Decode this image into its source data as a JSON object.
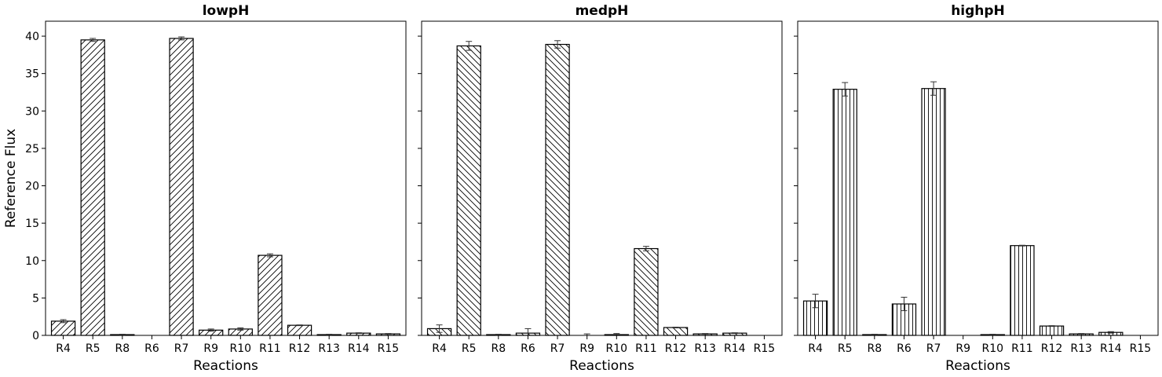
{
  "chart_data": [
    {
      "type": "bar",
      "title": "lowpH",
      "xlabel": "Reactions",
      "ylabel": "Reference Flux",
      "ylim": [
        0,
        42
      ],
      "yticks": [
        0,
        5,
        10,
        15,
        20,
        25,
        30,
        35,
        40
      ],
      "hatch": "forward-diagonal",
      "categories": [
        "R4",
        "R5",
        "R8",
        "R6",
        "R7",
        "R9",
        "R10",
        "R11",
        "R12",
        "R13",
        "R14",
        "R15"
      ],
      "values": [
        1.9,
        39.5,
        0.1,
        0.0,
        39.7,
        0.7,
        0.85,
        10.7,
        1.35,
        0.1,
        0.3,
        0.2
      ],
      "errors": [
        0.2,
        0.2,
        0.05,
        0.0,
        0.2,
        0.15,
        0.15,
        0.2,
        0.05,
        0.05,
        0.05,
        0.05
      ]
    },
    {
      "type": "bar",
      "title": "medpH",
      "xlabel": "Reactions",
      "ylabel": "",
      "ylim": [
        0,
        42
      ],
      "yticks": [
        0,
        5,
        10,
        15,
        20,
        25,
        30,
        35,
        40
      ],
      "hatch": "back-diagonal",
      "categories": [
        "R4",
        "R5",
        "R8",
        "R6",
        "R7",
        "R9",
        "R10",
        "R11",
        "R12",
        "R13",
        "R14",
        "R15"
      ],
      "values": [
        0.9,
        38.7,
        0.1,
        0.3,
        38.9,
        0.0,
        0.1,
        11.6,
        1.05,
        0.2,
        0.3,
        0.0
      ],
      "errors": [
        0.5,
        0.6,
        0.05,
        0.6,
        0.5,
        0.2,
        0.15,
        0.3,
        0.05,
        0.05,
        0.05,
        0.0
      ]
    },
    {
      "type": "bar",
      "title": "highpH",
      "xlabel": "Reactions",
      "ylabel": "",
      "ylim": [
        0,
        42
      ],
      "yticks": [
        0,
        5,
        10,
        15,
        20,
        25,
        30,
        35,
        40
      ],
      "hatch": "vertical",
      "categories": [
        "R4",
        "R5",
        "R8",
        "R6",
        "R7",
        "R9",
        "R10",
        "R11",
        "R12",
        "R13",
        "R14",
        "R15"
      ],
      "values": [
        4.6,
        32.9,
        0.1,
        4.2,
        33.0,
        0.0,
        0.1,
        12.0,
        1.25,
        0.2,
        0.4,
        0.0
      ],
      "errors": [
        0.9,
        0.9,
        0.05,
        0.9,
        0.9,
        0.0,
        0.05,
        0.05,
        0.05,
        0.05,
        0.1,
        0.0
      ]
    }
  ]
}
